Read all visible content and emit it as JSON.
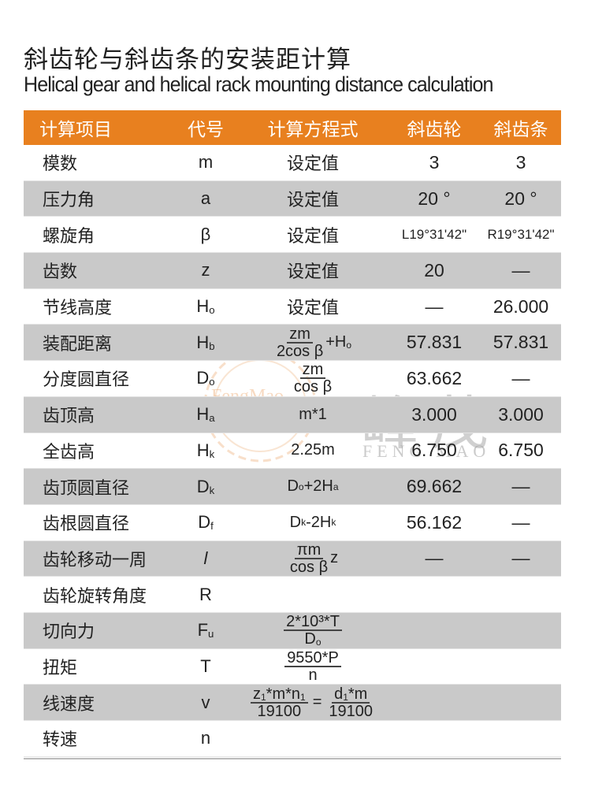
{
  "title_zh": "斜齿轮与斜齿条的安装距计算",
  "title_en": "Helical gear and helical rack mounting distance calculation",
  "colors": {
    "header": "#e8801f",
    "stripe": "#c9c9c9"
  },
  "watermark": {
    "zh": "峰茂",
    "en": "FENG MAO",
    "logo_text": "FengMao"
  },
  "header": {
    "name": "计算项目",
    "code": "代号",
    "formula": "计算方程式",
    "gear": "斜齿轮",
    "rack": "斜齿条"
  },
  "rows": [
    {
      "name": "模数",
      "code": [
        "m",
        ""
      ],
      "formula": {
        "text": "设定值"
      },
      "gear": "3",
      "rack": "3"
    },
    {
      "name": "压力角",
      "code": [
        "a",
        ""
      ],
      "formula": {
        "text": "设定值"
      },
      "gear": "20 °",
      "rack": "20 °"
    },
    {
      "name": "螺旋角",
      "code": [
        "β",
        ""
      ],
      "formula": {
        "text": "设定值"
      },
      "gear": "L19°31'42\"",
      "rack": "R19°31'42\""
    },
    {
      "name": "齿数",
      "code": [
        "z",
        ""
      ],
      "formula": {
        "text": "设定值"
      },
      "gear": "20",
      "rack": "—"
    },
    {
      "name": "节线高度",
      "code": [
        "H",
        "o"
      ],
      "formula": {
        "text": "设定值"
      },
      "gear": "—",
      "rack": "26.000"
    },
    {
      "name": "装配距离",
      "code": [
        "H",
        "b"
      ],
      "formula": {
        "num": [
          [
            "zm",
            ""
          ]
        ],
        "den": [
          [
            "2cos β",
            ""
          ]
        ],
        "after": [
          [
            "+H",
            "o"
          ]
        ]
      },
      "gear": "57.831",
      "rack": "57.831"
    },
    {
      "name": "分度圆直径",
      "code": [
        "D",
        "o"
      ],
      "formula": {
        "num": [
          [
            "zm",
            ""
          ]
        ],
        "den": [
          [
            "cos β",
            ""
          ]
        ]
      },
      "gear": "63.662",
      "rack": "—"
    },
    {
      "name": "齿顶高",
      "code": [
        "H",
        "a"
      ],
      "formula": {
        "rich": [
          [
            "m*1",
            ""
          ]
        ]
      },
      "gear": "3.000",
      "rack": "3.000"
    },
    {
      "name": "全齿高",
      "code": [
        "H",
        "k"
      ],
      "formula": {
        "rich": [
          [
            "2.25m",
            ""
          ]
        ]
      },
      "gear": "6.750",
      "rack": "6.750"
    },
    {
      "name": "齿顶圆直径",
      "code": [
        "D",
        "k"
      ],
      "formula": {
        "rich": [
          [
            "D",
            "o"
          ],
          [
            "+2H",
            "a"
          ]
        ]
      },
      "gear": "69.662",
      "rack": "—"
    },
    {
      "name": "齿根圆直径",
      "code": [
        "D",
        "f"
      ],
      "formula": {
        "rich": [
          [
            "D",
            "k"
          ],
          [
            "-2H",
            "k"
          ]
        ]
      },
      "gear": "56.162",
      "rack": "—"
    },
    {
      "name": "齿轮移动一周",
      "code": [
        "l",
        ""
      ],
      "formula": {
        "num": [
          [
            "πm",
            ""
          ]
        ],
        "den": [
          [
            "cos β",
            ""
          ]
        ],
        "after": [
          [
            "z",
            ""
          ]
        ]
      },
      "gear": "—",
      "rack": "—"
    },
    {
      "name": "齿轮旋转角度",
      "code": [
        "R",
        ""
      ],
      "formula": {
        "rich": []
      },
      "gear": "",
      "rack": ""
    },
    {
      "name": "切向力",
      "code": [
        "F",
        "u"
      ],
      "formula": {
        "num": [
          [
            "2*10³*T",
            ""
          ]
        ],
        "den": [
          [
            "D",
            "o"
          ]
        ]
      },
      "gear": "",
      "rack": ""
    },
    {
      "name": "扭矩",
      "code": [
        "T",
        ""
      ],
      "formula": {
        "num": [
          [
            "9550*P",
            ""
          ]
        ],
        "den": [
          [
            "n",
            ""
          ]
        ]
      },
      "gear": "",
      "rack": ""
    },
    {
      "name": "线速度",
      "code": [
        "v",
        ""
      ],
      "formula": {
        "num": [
          [
            "z",
            "1"
          ],
          [
            "*m*n",
            "1"
          ]
        ],
        "den": [
          [
            "19100",
            ""
          ]
        ],
        "eq": "=",
        "num2": [
          [
            "d",
            "1"
          ],
          [
            "*m",
            ""
          ]
        ],
        "den2": [
          [
            "19100",
            ""
          ]
        ]
      },
      "gear": "",
      "rack": ""
    },
    {
      "name": "转速",
      "code": [
        "n",
        ""
      ],
      "formula": {
        "rich": []
      },
      "gear": "",
      "rack": ""
    }
  ]
}
